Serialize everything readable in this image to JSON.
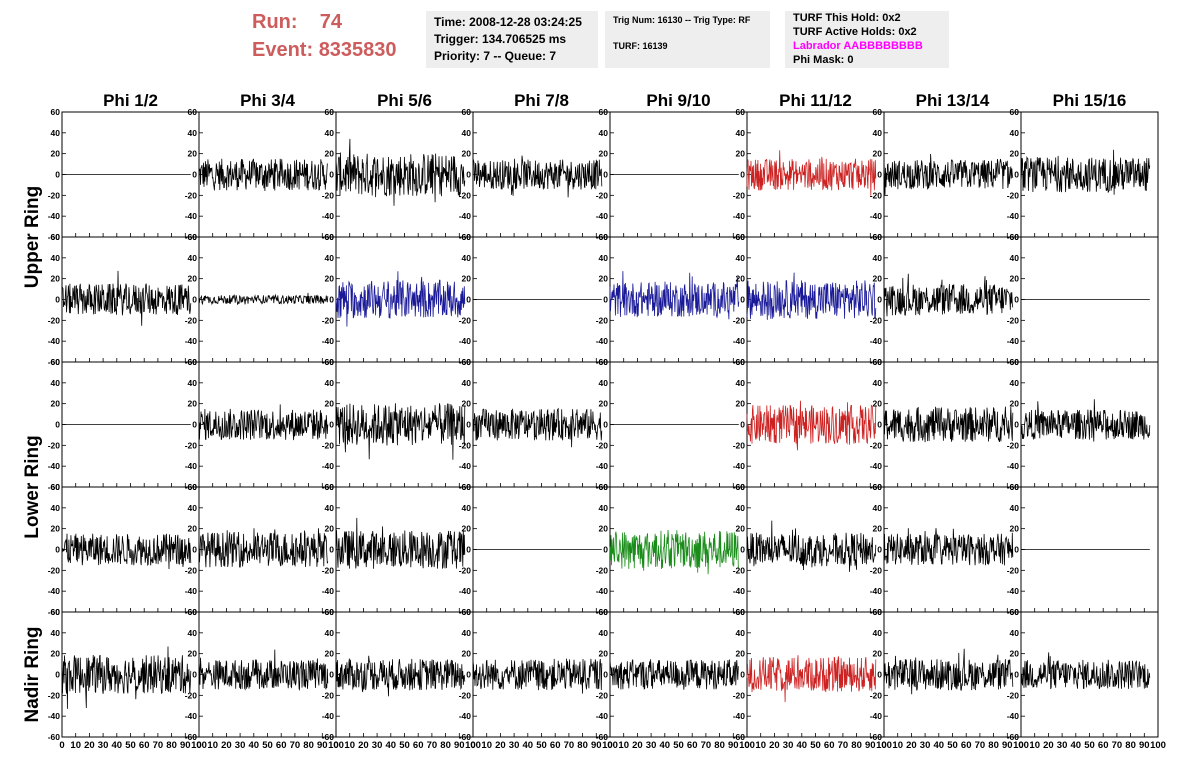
{
  "header": {
    "run_label": "Run:",
    "run_value": "74",
    "event_label": "Event:",
    "event_value": "8335830",
    "time": "Time: 2008-12-28 03:24:25",
    "trigger": "Trigger: 134.706525 ms",
    "priority": "Priority: 7 -- Queue: 7",
    "trig_num": "Trig Num: 16130 -- Trig Type: RF",
    "turf": "TURF: 16139",
    "turf_this_hold": "TURF This Hold: 0x2",
    "turf_active_holds": "TURF Active Holds: 0x2",
    "labrador": "Labrador AABBBBBBBB",
    "phi_mask": "Phi Mask: 0"
  },
  "colors": {
    "run_text": "#cd5c5c",
    "labrador_text": "#ff00ff",
    "info_bg": "#eeeeee",
    "trace_black": "#000000",
    "trace_red": "#cc2222",
    "trace_blue": "#1a1a99",
    "trace_green": "#1a8c1a"
  },
  "chart_data": {
    "type": "line",
    "columns": [
      "Phi 1/2",
      "Phi 3/4",
      "Phi 5/6",
      "Phi 7/8",
      "Phi 9/10",
      "Phi 11/12",
      "Phi 13/14",
      "Phi 15/16"
    ],
    "ring_labels": [
      "Upper Ring",
      "Lower Ring",
      "Nadir Ring"
    ],
    "xlim": [
      0,
      100
    ],
    "ylim": [
      -60,
      60
    ],
    "x_ticks": [
      0,
      10,
      20,
      30,
      40,
      50,
      60,
      70,
      80,
      90,
      100
    ],
    "y_ticks": [
      -60,
      -40,
      -20,
      0,
      20,
      40,
      60
    ],
    "grid": false,
    "panels": [
      [
        {
          "color": "black",
          "amp": 0
        },
        {
          "color": "black",
          "amp": 18
        },
        {
          "color": "black",
          "amp": 25
        },
        {
          "color": "black",
          "amp": 17
        },
        {
          "color": "black",
          "amp": 0
        },
        {
          "color": "red",
          "amp": 18
        },
        {
          "color": "black",
          "amp": 17
        },
        {
          "color": "black",
          "amp": 20
        }
      ],
      [
        {
          "color": "black",
          "amp": 18
        },
        {
          "color": "black",
          "amp": 5
        },
        {
          "color": "blue",
          "amp": 22
        },
        {
          "color": "black",
          "amp": 0
        },
        {
          "color": "blue",
          "amp": 20
        },
        {
          "color": "blue",
          "amp": 22
        },
        {
          "color": "black",
          "amp": 18
        },
        {
          "color": "black",
          "amp": 0
        }
      ],
      [
        {
          "color": "black",
          "amp": 0
        },
        {
          "color": "black",
          "amp": 18
        },
        {
          "color": "black",
          "amp": 24
        },
        {
          "color": "black",
          "amp": 18
        },
        {
          "color": "black",
          "amp": 0
        },
        {
          "color": "red",
          "amp": 22
        },
        {
          "color": "black",
          "amp": 20
        },
        {
          "color": "black",
          "amp": 17
        }
      ],
      [
        {
          "color": "black",
          "amp": 18
        },
        {
          "color": "black",
          "amp": 20
        },
        {
          "color": "black",
          "amp": 22
        },
        {
          "color": "black",
          "amp": 0
        },
        {
          "color": "green",
          "amp": 22
        },
        {
          "color": "black",
          "amp": 19
        },
        {
          "color": "black",
          "amp": 18
        },
        {
          "color": "black",
          "amp": 0
        }
      ],
      [
        {
          "color": "black",
          "amp": 22
        },
        {
          "color": "black",
          "amp": 17
        },
        {
          "color": "black",
          "amp": 18
        },
        {
          "color": "black",
          "amp": 18
        },
        {
          "color": "black",
          "amp": 17
        },
        {
          "color": "red",
          "amp": 20
        },
        {
          "color": "black",
          "amp": 18
        },
        {
          "color": "black",
          "amp": 17
        }
      ]
    ]
  }
}
